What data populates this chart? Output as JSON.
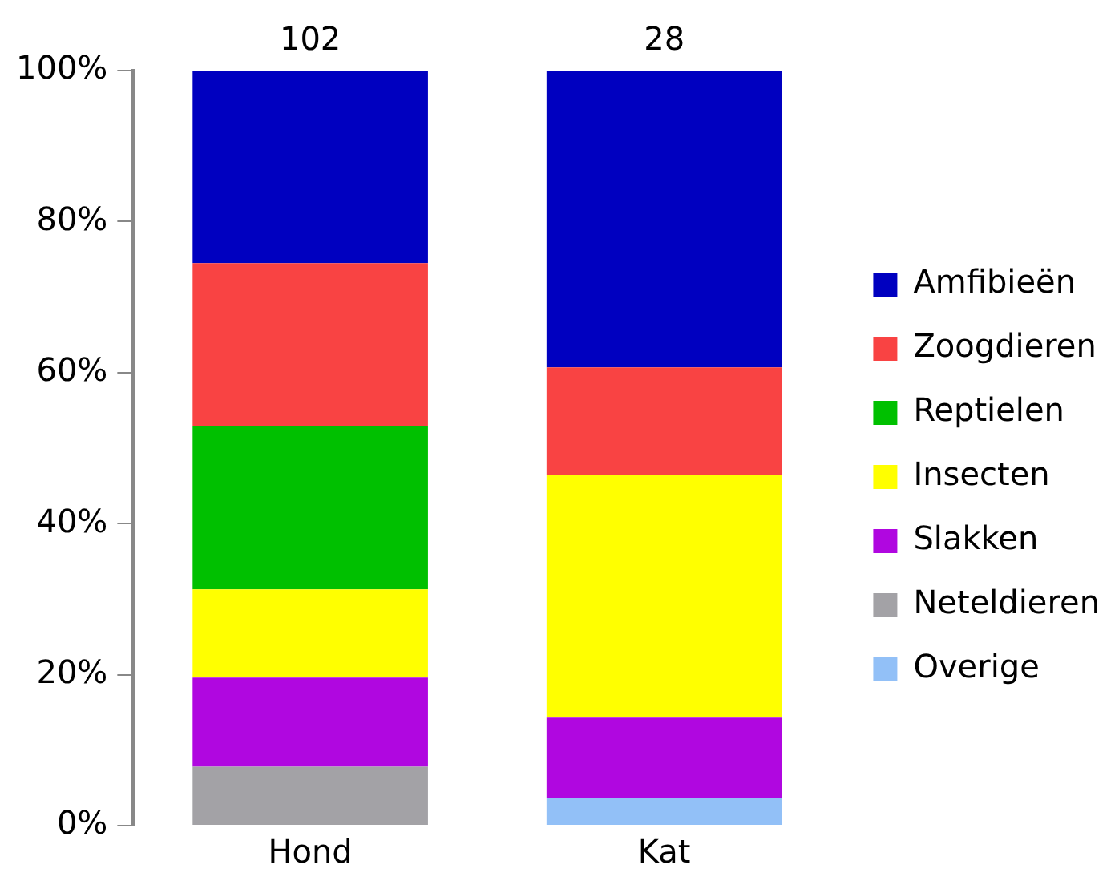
{
  "chart_data": {
    "type": "bar",
    "stacked": true,
    "categories": [
      "Hond",
      "Kat"
    ],
    "series": [
      {
        "name": "Overige",
        "color": "#92c0f7",
        "values": [
          null,
          3.6
        ]
      },
      {
        "name": "Neteldieren",
        "color": "#a3a2a6",
        "values": [
          7.8,
          null
        ]
      },
      {
        "name": "Slakken",
        "color": "#b007e0",
        "values": [
          11.8,
          10.7
        ]
      },
      {
        "name": "Insecten",
        "color": "#ffff00",
        "values": [
          11.7,
          32.1
        ]
      },
      {
        "name": "Reptielen",
        "color": "#00c000",
        "values": [
          21.6,
          null
        ]
      },
      {
        "name": "Zoogdieren",
        "color": "#f94343",
        "values": [
          21.6,
          14.3
        ]
      },
      {
        "name": "Amfibieën",
        "color": "#0000c0",
        "values": [
          25.5,
          39.3
        ]
      }
    ],
    "annotations": [
      {
        "text": "102",
        "x": "Hond",
        "y": 100
      },
      {
        "text": "28",
        "x": "Kat",
        "y": 100
      }
    ],
    "ylim": [
      0,
      100
    ],
    "yticks": [
      {
        "value": 0,
        "label": "0%"
      },
      {
        "value": 20,
        "label": "20%"
      },
      {
        "value": 40,
        "label": "40%"
      },
      {
        "value": 60,
        "label": "60%"
      },
      {
        "value": 80,
        "label": "80%"
      },
      {
        "value": 100,
        "label": "100%"
      }
    ],
    "grid": false,
    "legend": "right"
  }
}
